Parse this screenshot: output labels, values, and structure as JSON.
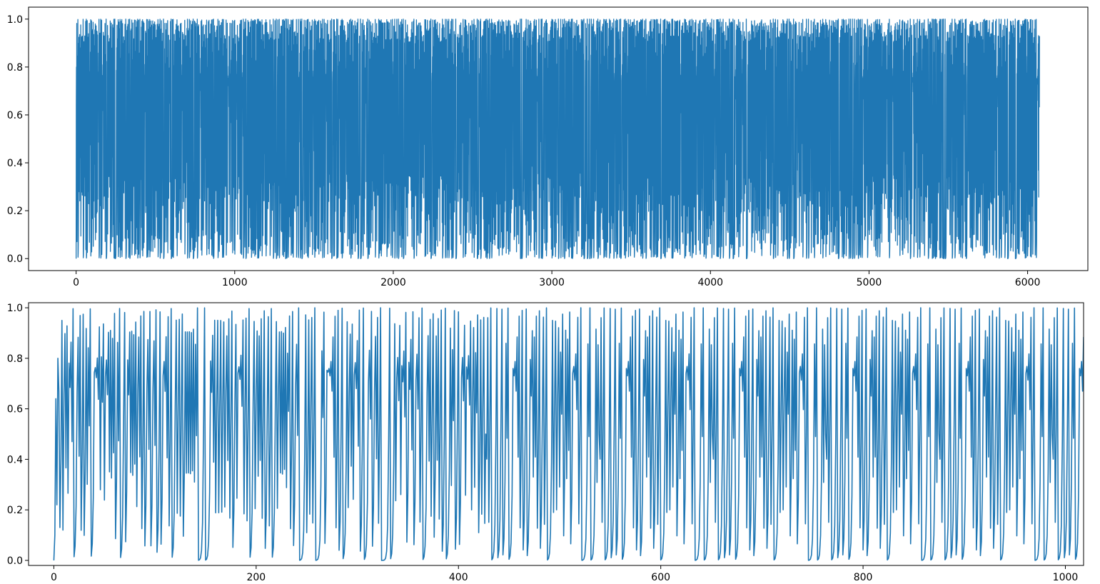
{
  "chart_data": [
    {
      "id": "top",
      "type": "line",
      "title": "",
      "xlabel": "",
      "ylabel": "",
      "xlim": [
        -300,
        6380
      ],
      "ylim": [
        -0.05,
        1.05
      ],
      "x_ticks": [
        0,
        1000,
        2000,
        3000,
        4000,
        5000,
        6000
      ],
      "x_tick_labels": [
        "0",
        "1000",
        "2000",
        "3000",
        "4000",
        "5000",
        "6000"
      ],
      "y_ticks": [
        0.0,
        0.2,
        0.4,
        0.6,
        0.8,
        1.0
      ],
      "y_tick_labels": [
        "0.0",
        "0.2",
        "0.4",
        "0.6",
        "0.8",
        "1.0"
      ],
      "grid": false,
      "line_color": "#1f77b4",
      "series": [
        {
          "x_start": 0,
          "x_end": 6075,
          "n_points": 6076,
          "value_min": 0.0,
          "value_max": 1.0,
          "pattern": "chaotic logistic-map iteration, values fill 0–1"
        }
      ]
    },
    {
      "id": "bottom",
      "type": "line",
      "title": "",
      "xlabel": "",
      "ylabel": "",
      "xlim": [
        -25,
        1018
      ],
      "ylim": [
        -0.02,
        1.02
      ],
      "x_ticks": [
        0,
        200,
        400,
        600,
        800,
        1000
      ],
      "x_tick_labels": [
        "0",
        "200",
        "400",
        "600",
        "800",
        "1000"
      ],
      "y_ticks": [
        0.0,
        0.2,
        0.4,
        0.6,
        0.8,
        1.0
      ],
      "y_tick_labels": [
        "0.0",
        "0.2",
        "0.4",
        "0.6",
        "0.8",
        "1.0"
      ],
      "grid": false,
      "line_color": "#1f77b4",
      "series": [
        {
          "x_start": 0,
          "x_end": 1018,
          "first_values": [
            0.0,
            0.1,
            0.64,
            0.22,
            0.8,
            0.67,
            0.13,
            0.4,
            0.95,
            0.12,
            0.66
          ],
          "value_min": 0.0,
          "value_max": 1.0,
          "pattern": "chaotic logistic-map iteration, values fill 0–1"
        }
      ]
    }
  ]
}
